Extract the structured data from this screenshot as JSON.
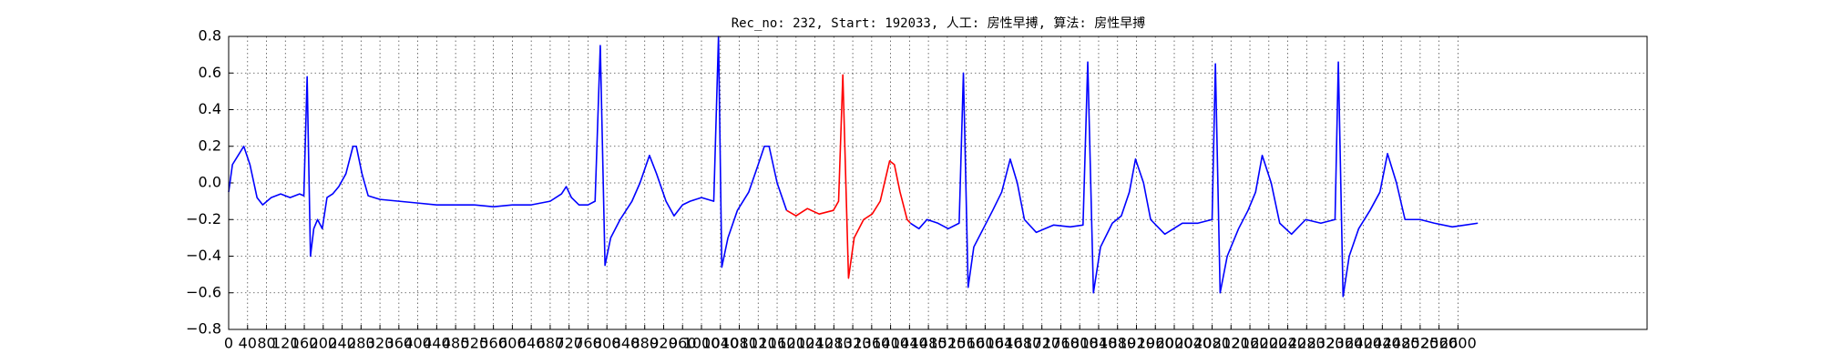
{
  "chart_data": {
    "type": "line",
    "title": "Rec_no: 232, Start: 192033, 人工: 房性早搏, 算法: 房性早搏",
    "x": [
      0,
      8,
      20,
      32,
      45,
      60,
      72,
      90,
      110,
      130,
      150,
      159,
      166,
      173,
      180,
      188,
      198,
      208,
      220,
      233,
      248,
      263,
      270,
      282,
      295,
      320,
      360,
      400,
      440,
      480,
      520,
      560,
      600,
      640,
      680,
      704,
      714,
      725,
      741,
      760,
      775,
      786,
      796,
      808,
      828,
      853,
      870,
      890,
      905,
      925,
      942,
      960,
      976,
      1000,
      1026,
      1036,
      1043,
      1056,
      1076,
      1100,
      1120,
      1133,
      1143,
      1160,
      1180,
      1200,
      1224,
      1249,
      1279,
      1290,
      1299,
      1311,
      1323,
      1343,
      1361,
      1378,
      1398,
      1408,
      1420,
      1435,
      1442,
      1460,
      1477,
      1500,
      1522,
      1545,
      1554,
      1564,
      1576,
      1596,
      1616,
      1635,
      1653,
      1668,
      1683,
      1708,
      1745,
      1780,
      1807,
      1817,
      1829,
      1844,
      1869,
      1888,
      1905,
      1918,
      1935,
      1950,
      1980,
      2017,
      2050,
      2080,
      2087,
      2097,
      2112,
      2136,
      2156,
      2172,
      2186,
      2205,
      2223,
      2248,
      2278,
      2310,
      2340,
      2347,
      2357,
      2370,
      2390,
      2414,
      2435,
      2451,
      2470,
      2488,
      2520,
      2550,
      2588,
      2615,
      2642
    ],
    "series": [
      {
        "color": "#0000ff",
        "values": [
          -0.05,
          0.1,
          0.15,
          0.2,
          0.1,
          -0.08,
          -0.12,
          -0.08,
          -0.06,
          -0.08,
          -0.06,
          -0.07,
          0.58,
          -0.4,
          -0.25,
          -0.2,
          -0.25,
          -0.08,
          -0.06,
          -0.02,
          0.05,
          0.2,
          0.2,
          0.05,
          -0.07,
          -0.09,
          -0.1,
          -0.11,
          -0.12,
          -0.12,
          -0.12,
          -0.13,
          -0.12,
          -0.12,
          -0.1,
          -0.06,
          -0.02,
          -0.08,
          -0.12,
          -0.12,
          -0.1,
          0.75,
          -0.45,
          -0.3,
          -0.2,
          -0.1,
          0.0,
          0.15,
          0.05,
          -0.1,
          -0.18,
          -0.12,
          -0.1,
          -0.08,
          -0.1,
          0.8,
          -0.46,
          -0.3,
          -0.15,
          -0.05,
          0.1,
          0.2,
          0.2,
          0.0,
          -0.15,
          null,
          null,
          null,
          null,
          null,
          null,
          null,
          null,
          null,
          null,
          null,
          null,
          null,
          null,
          null,
          -0.22,
          -0.25,
          -0.2,
          -0.22,
          -0.25,
          -0.22,
          0.6,
          -0.57,
          -0.35,
          -0.25,
          -0.15,
          -0.05,
          0.13,
          0.0,
          -0.2,
          -0.27,
          -0.23,
          -0.24,
          -0.23,
          0.66,
          -0.6,
          -0.35,
          -0.22,
          -0.18,
          -0.05,
          0.13,
          0.0,
          -0.2,
          -0.28,
          -0.22,
          -0.22,
          -0.2,
          0.65,
          -0.6,
          -0.4,
          -0.25,
          -0.15,
          -0.05,
          0.15,
          0.0,
          -0.22,
          -0.28,
          -0.2,
          -0.22,
          -0.2,
          0.66,
          -0.62,
          -0.4,
          -0.25,
          -0.15,
          -0.05,
          0.16,
          0.0,
          -0.2,
          -0.2,
          -0.22,
          -0.24,
          -0.23,
          -0.22
        ]
      },
      {
        "color": "#ff0000",
        "values": [
          null,
          null,
          null,
          null,
          null,
          null,
          null,
          null,
          null,
          null,
          null,
          null,
          null,
          null,
          null,
          null,
          null,
          null,
          null,
          null,
          null,
          null,
          null,
          null,
          null,
          null,
          null,
          null,
          null,
          null,
          null,
          null,
          null,
          null,
          null,
          null,
          null,
          null,
          null,
          null,
          null,
          null,
          null,
          null,
          null,
          null,
          null,
          null,
          null,
          null,
          null,
          null,
          null,
          null,
          null,
          null,
          null,
          null,
          null,
          null,
          null,
          null,
          null,
          null,
          -0.15,
          -0.18,
          -0.14,
          -0.17,
          -0.15,
          -0.1,
          0.59,
          -0.52,
          -0.3,
          -0.2,
          -0.17,
          -0.1,
          0.12,
          0.1,
          -0.05,
          -0.2,
          -0.22,
          null,
          null,
          null,
          null,
          null,
          null,
          null,
          null,
          null,
          null,
          null,
          null,
          null,
          null,
          null,
          null,
          null,
          null,
          null,
          null,
          null,
          null,
          null,
          null,
          null,
          null,
          null,
          null,
          null,
          null,
          null,
          null,
          null,
          null,
          null,
          null,
          null,
          null,
          null,
          null,
          null,
          null,
          null,
          null,
          null,
          null,
          null,
          null,
          null,
          null,
          null,
          null,
          null,
          null,
          null,
          null,
          null,
          null
        ]
      }
    ],
    "xlim": [
      0,
      3000
    ],
    "xticks": [
      0,
      40,
      80,
      120,
      160,
      200,
      240,
      280,
      320,
      360,
      400,
      440,
      480,
      520,
      560,
      600,
      640,
      680,
      720,
      760,
      800,
      840,
      880,
      920,
      960,
      1000,
      1040,
      1080,
      1120,
      1160,
      1200,
      1240,
      1280,
      1320,
      1360,
      1400,
      1440,
      1480,
      1520,
      1560,
      1600,
      1640,
      1680,
      1720,
      1760,
      1800,
      1840,
      1880,
      1920,
      1960,
      2000,
      2040,
      2080,
      2120,
      2160,
      2200,
      2240,
      2280,
      2320,
      2360,
      2400,
      2440,
      2480,
      2520,
      2560,
      2600
    ],
    "ylim": [
      -0.8,
      0.8
    ],
    "yticks": [
      {
        "value": -0.8,
        "label": "−0.8"
      },
      {
        "value": -0.6,
        "label": "−0.6"
      },
      {
        "value": -0.4,
        "label": "−0.4"
      },
      {
        "value": -0.2,
        "label": "−0.2"
      },
      {
        "value": 0,
        "label": "0.0"
      },
      {
        "value": 0.2,
        "label": "0.2"
      },
      {
        "value": 0.4,
        "label": "0.4"
      },
      {
        "value": 0.6,
        "label": "0.6"
      },
      {
        "value": 0.8,
        "label": "0.8"
      }
    ],
    "grid": true
  }
}
